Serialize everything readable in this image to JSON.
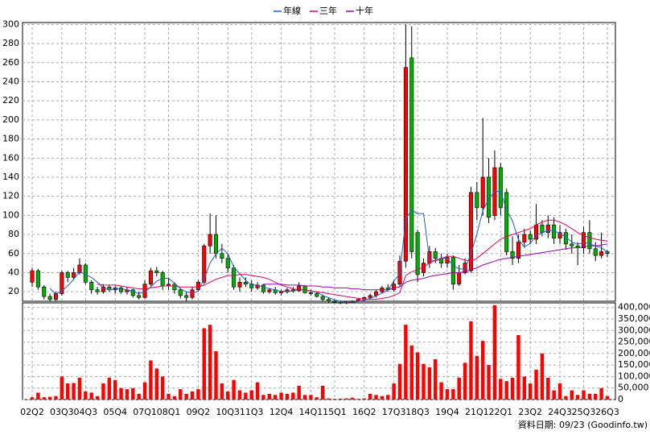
{
  "chart_data": {
    "type": "candlestick",
    "categories": [
      "02Q2",
      null,
      null,
      null,
      null,
      "03Q3",
      null,
      null,
      null,
      "04Q3",
      null,
      null,
      null,
      null,
      "05Q4",
      null,
      null,
      null,
      null,
      "07Q1",
      null,
      null,
      null,
      "08Q1",
      null,
      null,
      null,
      null,
      "09Q2",
      null,
      null,
      null,
      null,
      "10Q3",
      null,
      null,
      null,
      "11Q3",
      null,
      null,
      null,
      null,
      "12Q4",
      null,
      null,
      null,
      null,
      "14Q1",
      null,
      null,
      null,
      "15Q1",
      null,
      null,
      null,
      null,
      "16Q2",
      null,
      null,
      null,
      null,
      "17Q3",
      null,
      null,
      null,
      "18Q3",
      null,
      null,
      null,
      null,
      "19Q4",
      null,
      null,
      null,
      null,
      "21Q1",
      null,
      null,
      null,
      "22Q1",
      null,
      null,
      null,
      null,
      "23Q2",
      null,
      null,
      null,
      null,
      "24Q3",
      null,
      null,
      null,
      "25Q3",
      null,
      null,
      null,
      "26Q3"
    ],
    "open": [
      30,
      42,
      25,
      15,
      12,
      18,
      40,
      35,
      40,
      48,
      30,
      22,
      20,
      25,
      22,
      24,
      20,
      22,
      16,
      14,
      28,
      42,
      40,
      26,
      28,
      22,
      16,
      14,
      22,
      30,
      68,
      80,
      60,
      55,
      45,
      25,
      30,
      28,
      24,
      27,
      20,
      22,
      19,
      20,
      22,
      21,
      26,
      19,
      18,
      15,
      12,
      10,
      9,
      8,
      9,
      10,
      12,
      14,
      16,
      20,
      24,
      22,
      28,
      52,
      265,
      82,
      40,
      50,
      62,
      55,
      50,
      56,
      28,
      40,
      42,
      124,
      108,
      140,
      100,
      150,
      124,
      62,
      55,
      72,
      80,
      75,
      90,
      82,
      90,
      76,
      82,
      70,
      68,
      66,
      82,
      65,
      58,
      62
    ],
    "high": [
      45,
      44,
      27,
      18,
      20,
      42,
      42,
      45,
      55,
      50,
      32,
      25,
      28,
      27,
      26,
      26,
      25,
      23,
      20,
      32,
      45,
      46,
      42,
      35,
      30,
      24,
      20,
      25,
      32,
      70,
      102,
      100,
      70,
      60,
      48,
      35,
      35,
      32,
      30,
      28,
      24,
      25,
      22,
      24,
      25,
      30,
      27,
      22,
      20,
      17,
      14,
      12,
      11,
      10,
      11,
      13,
      15,
      18,
      22,
      26,
      28,
      32,
      58,
      300,
      298,
      85,
      55,
      68,
      66,
      60,
      60,
      58,
      48,
      55,
      130,
      135,
      202,
      160,
      168,
      155,
      128,
      78,
      80,
      86,
      84,
      112,
      95,
      100,
      98,
      90,
      86,
      80,
      72,
      88,
      95,
      72,
      82,
      64
    ],
    "low": [
      25,
      22,
      12,
      10,
      10,
      16,
      30,
      33,
      38,
      28,
      18,
      17,
      18,
      20,
      18,
      18,
      17,
      14,
      12,
      13,
      26,
      36,
      22,
      22,
      18,
      13,
      10,
      12,
      20,
      28,
      60,
      55,
      50,
      40,
      22,
      20,
      25,
      20,
      22,
      18,
      18,
      17,
      16,
      18,
      19,
      20,
      18,
      16,
      14,
      10,
      8,
      8,
      7,
      7,
      8,
      9,
      10,
      12,
      14,
      18,
      20,
      20,
      25,
      45,
      55,
      30,
      36,
      45,
      50,
      45,
      45,
      22,
      26,
      38,
      40,
      95,
      100,
      92,
      95,
      100,
      58,
      48,
      50,
      66,
      70,
      70,
      78,
      76,
      70,
      70,
      64,
      60,
      48,
      60,
      60,
      52,
      55,
      56
    ],
    "close": [
      42,
      25,
      15,
      12,
      18,
      40,
      35,
      40,
      48,
      30,
      22,
      20,
      25,
      22,
      24,
      20,
      22,
      16,
      14,
      28,
      42,
      40,
      26,
      28,
      22,
      16,
      14,
      22,
      30,
      68,
      80,
      60,
      55,
      45,
      25,
      30,
      28,
      24,
      27,
      20,
      22,
      19,
      20,
      22,
      21,
      26,
      19,
      18,
      15,
      12,
      10,
      9,
      8,
      9,
      10,
      12,
      14,
      16,
      20,
      24,
      22,
      28,
      52,
      255,
      62,
      38,
      50,
      62,
      55,
      50,
      56,
      28,
      40,
      50,
      124,
      108,
      140,
      98,
      150,
      108,
      62,
      55,
      72,
      80,
      75,
      90,
      82,
      90,
      76,
      82,
      70,
      68,
      66,
      82,
      65,
      58,
      62,
      60
    ],
    "volume": [
      10000,
      30000,
      10000,
      12000,
      15000,
      100000,
      70000,
      72000,
      95000,
      35000,
      30000,
      15000,
      70000,
      95000,
      85000,
      50000,
      45000,
      50000,
      25000,
      75000,
      170000,
      135000,
      100000,
      25000,
      15000,
      45000,
      25000,
      35000,
      45000,
      310000,
      325000,
      210000,
      70000,
      35000,
      85000,
      40000,
      30000,
      40000,
      75000,
      20000,
      25000,
      20000,
      30000,
      25000,
      30000,
      60000,
      20000,
      20000,
      10000,
      60000,
      5000,
      3000,
      4000,
      5000,
      8000,
      3000,
      5000,
      25000,
      20000,
      15000,
      20000,
      70000,
      155000,
      325000,
      235000,
      205000,
      155000,
      140000,
      175000,
      75000,
      45000,
      45000,
      95000,
      160000,
      340000,
      190000,
      255000,
      150000,
      410000,
      90000,
      80000,
      95000,
      280000,
      100000,
      70000,
      130000,
      200000,
      95000,
      40000,
      70000,
      15000,
      40000,
      20000,
      40000,
      25000,
      25000,
      50000,
      15000
    ],
    "up_color": "#ff0000",
    "down_color": "#00b000",
    "volume_color": "#ff0000",
    "series": [
      {
        "name": "年線",
        "color": "#1f5fd0",
        "values": [
          null,
          null,
          null,
          23.5,
          17.5,
          21,
          26,
          33,
          41,
          38,
          35,
          30,
          24,
          22,
          23,
          23,
          22,
          20.5,
          18,
          20,
          25,
          31,
          34,
          34,
          29,
          23,
          20,
          18.5,
          20.5,
          33.5,
          50,
          59.5,
          65.8,
          60,
          46,
          38.8,
          32,
          26.8,
          27.3,
          24.8,
          23.3,
          22,
          20.3,
          20.8,
          20.5,
          22.3,
          22,
          21,
          19.5,
          16,
          13.8,
          11.5,
          9.8,
          9,
          9,
          9.8,
          11.3,
          13,
          15.5,
          18.5,
          21.5,
          31.3,
          38.8,
          96.5,
          105.5,
          101.8,
          102,
          54,
          52,
          54.8,
          55.5,
          47,
          43.8,
          43.8,
          60,
          80.5,
          105,
          117.5,
          125,
          125,
          105.5,
          94,
          74.8,
          67,
          70.5,
          79,
          81.8,
          84.3,
          84.3,
          80.5,
          77.5,
          72,
          69.8,
          71.5,
          70.3,
          67.8,
          66.3,
          61.3
        ]
      },
      {
        "name": "三年",
        "color": "#e8005a",
        "values": [
          null,
          null,
          null,
          null,
          null,
          null,
          null,
          null,
          null,
          null,
          null,
          28,
          27,
          27,
          27,
          26,
          25,
          24,
          23,
          23,
          24,
          25,
          26,
          26,
          26,
          25,
          25,
          25,
          25,
          27,
          30,
          33,
          35,
          37,
          37,
          38,
          38,
          37,
          36,
          35,
          33,
          30,
          27,
          25,
          23,
          22,
          22,
          21,
          20,
          19,
          18,
          17,
          16,
          15,
          14,
          13,
          12,
          12,
          12,
          13,
          14,
          16,
          19,
          37,
          41,
          43,
          46,
          50,
          53,
          55,
          57,
          57,
          55,
          53,
          52,
          55,
          60,
          65,
          70,
          75,
          78,
          80,
          82,
          84,
          86,
          90,
          93,
          95,
          95,
          93,
          90,
          86,
          82,
          79,
          77,
          75,
          74,
          73
        ]
      },
      {
        "name": "十年",
        "color": "#9a00b0",
        "values": [
          null,
          null,
          null,
          null,
          null,
          null,
          null,
          null,
          null,
          null,
          null,
          null,
          null,
          null,
          null,
          null,
          null,
          null,
          null,
          null,
          null,
          null,
          null,
          null,
          null,
          null,
          null,
          null,
          null,
          null,
          null,
          null,
          null,
          null,
          null,
          null,
          null,
          null,
          null,
          28,
          28,
          28,
          28,
          27,
          27,
          27,
          26,
          26,
          26,
          25,
          25,
          24,
          24,
          24,
          23,
          23,
          22,
          22,
          22,
          22,
          22,
          24,
          25,
          30,
          32,
          33,
          34,
          36,
          37,
          38,
          39,
          40,
          40,
          41,
          43,
          45,
          48,
          50,
          52,
          54,
          55,
          56,
          57,
          58,
          59,
          60,
          61,
          62,
          63,
          64,
          65,
          66,
          66,
          67,
          68,
          68,
          69,
          70
        ]
      }
    ],
    "ylim": [
      10,
      302
    ],
    "yticks": [
      20,
      40,
      60,
      80,
      100,
      120,
      140,
      160,
      180,
      200,
      220,
      240,
      260,
      280,
      300
    ],
    "y2lim": [
      0,
      420000
    ],
    "y2ticks": [
      0,
      {
        "value": 50000,
        "label": "50,000"
      },
      {
        "value": 100000,
        "label": "100,000"
      },
      {
        "value": 150000,
        "label": "150,000"
      },
      {
        "value": 200000,
        "label": "200,000"
      },
      {
        "value": 250000,
        "label": "250,000"
      },
      {
        "value": 300000,
        "label": "300,000"
      },
      {
        "value": 350000,
        "label": "350,000"
      },
      {
        "value": 400000,
        "label": "400,000"
      }
    ],
    "grid": true,
    "source": "資料日期: 09/23 (Goodinfo.tw)"
  }
}
